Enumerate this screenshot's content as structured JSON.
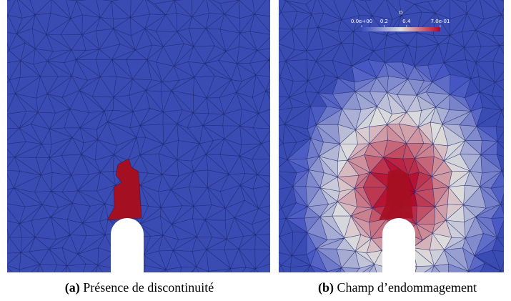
{
  "panels": [
    {
      "label": "(a)",
      "caption": "Présence de discontinuité"
    },
    {
      "label": "(b)",
      "caption": "Champ d’endommagement"
    }
  ],
  "colorbar": {
    "title": "D",
    "ticks": [
      {
        "value": 0,
        "label": "0.0e+00"
      },
      0.2,
      0.4,
      {
        "value": 0.7,
        "label": "7.0e-01"
      }
    ]
  }
}
